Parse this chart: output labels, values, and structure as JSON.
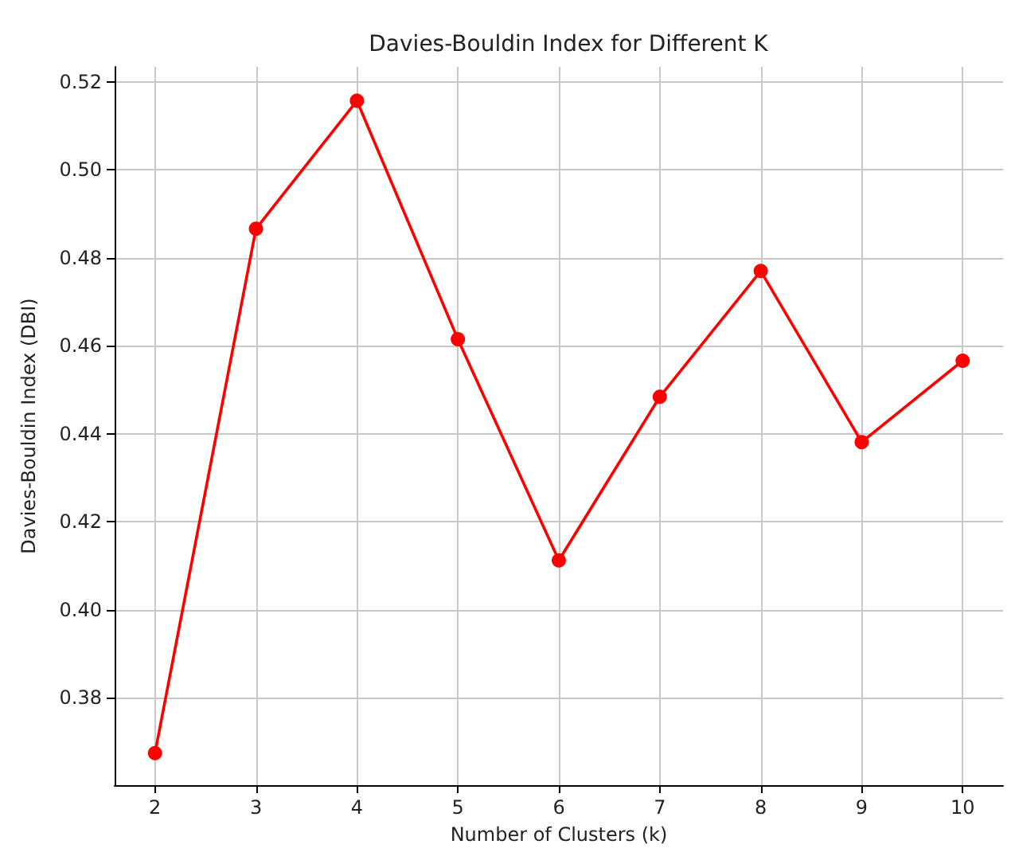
{
  "chart_data": {
    "type": "line",
    "title": "Davies-Bouldin Index for Different K",
    "xlabel": "Number of Clusters (k)",
    "ylabel": "Davies-Bouldin Index (DBI)",
    "x": [
      2,
      3,
      4,
      5,
      6,
      7,
      8,
      9,
      10
    ],
    "series": [
      {
        "color": "#ff0000",
        "values": [
          0.3674,
          0.4866,
          0.5157,
          0.4615,
          0.4112,
          0.4484,
          0.477,
          0.4381,
          0.4566
        ]
      }
    ],
    "xlim": [
      1.6,
      10.4
    ],
    "xticks": [
      2,
      3,
      4,
      5,
      6,
      7,
      8,
      9,
      10
    ],
    "ylim": [
      0.3601,
      0.5234
    ],
    "yticks": [
      0.38,
      {
        "value": 0.4,
        "label": "0.40"
      },
      0.42,
      0.44,
      0.46,
      0.48,
      {
        "value": 0.5,
        "label": "0.50"
      },
      0.52
    ],
    "grid": true,
    "marker": "circle",
    "line_style": "solid"
  }
}
